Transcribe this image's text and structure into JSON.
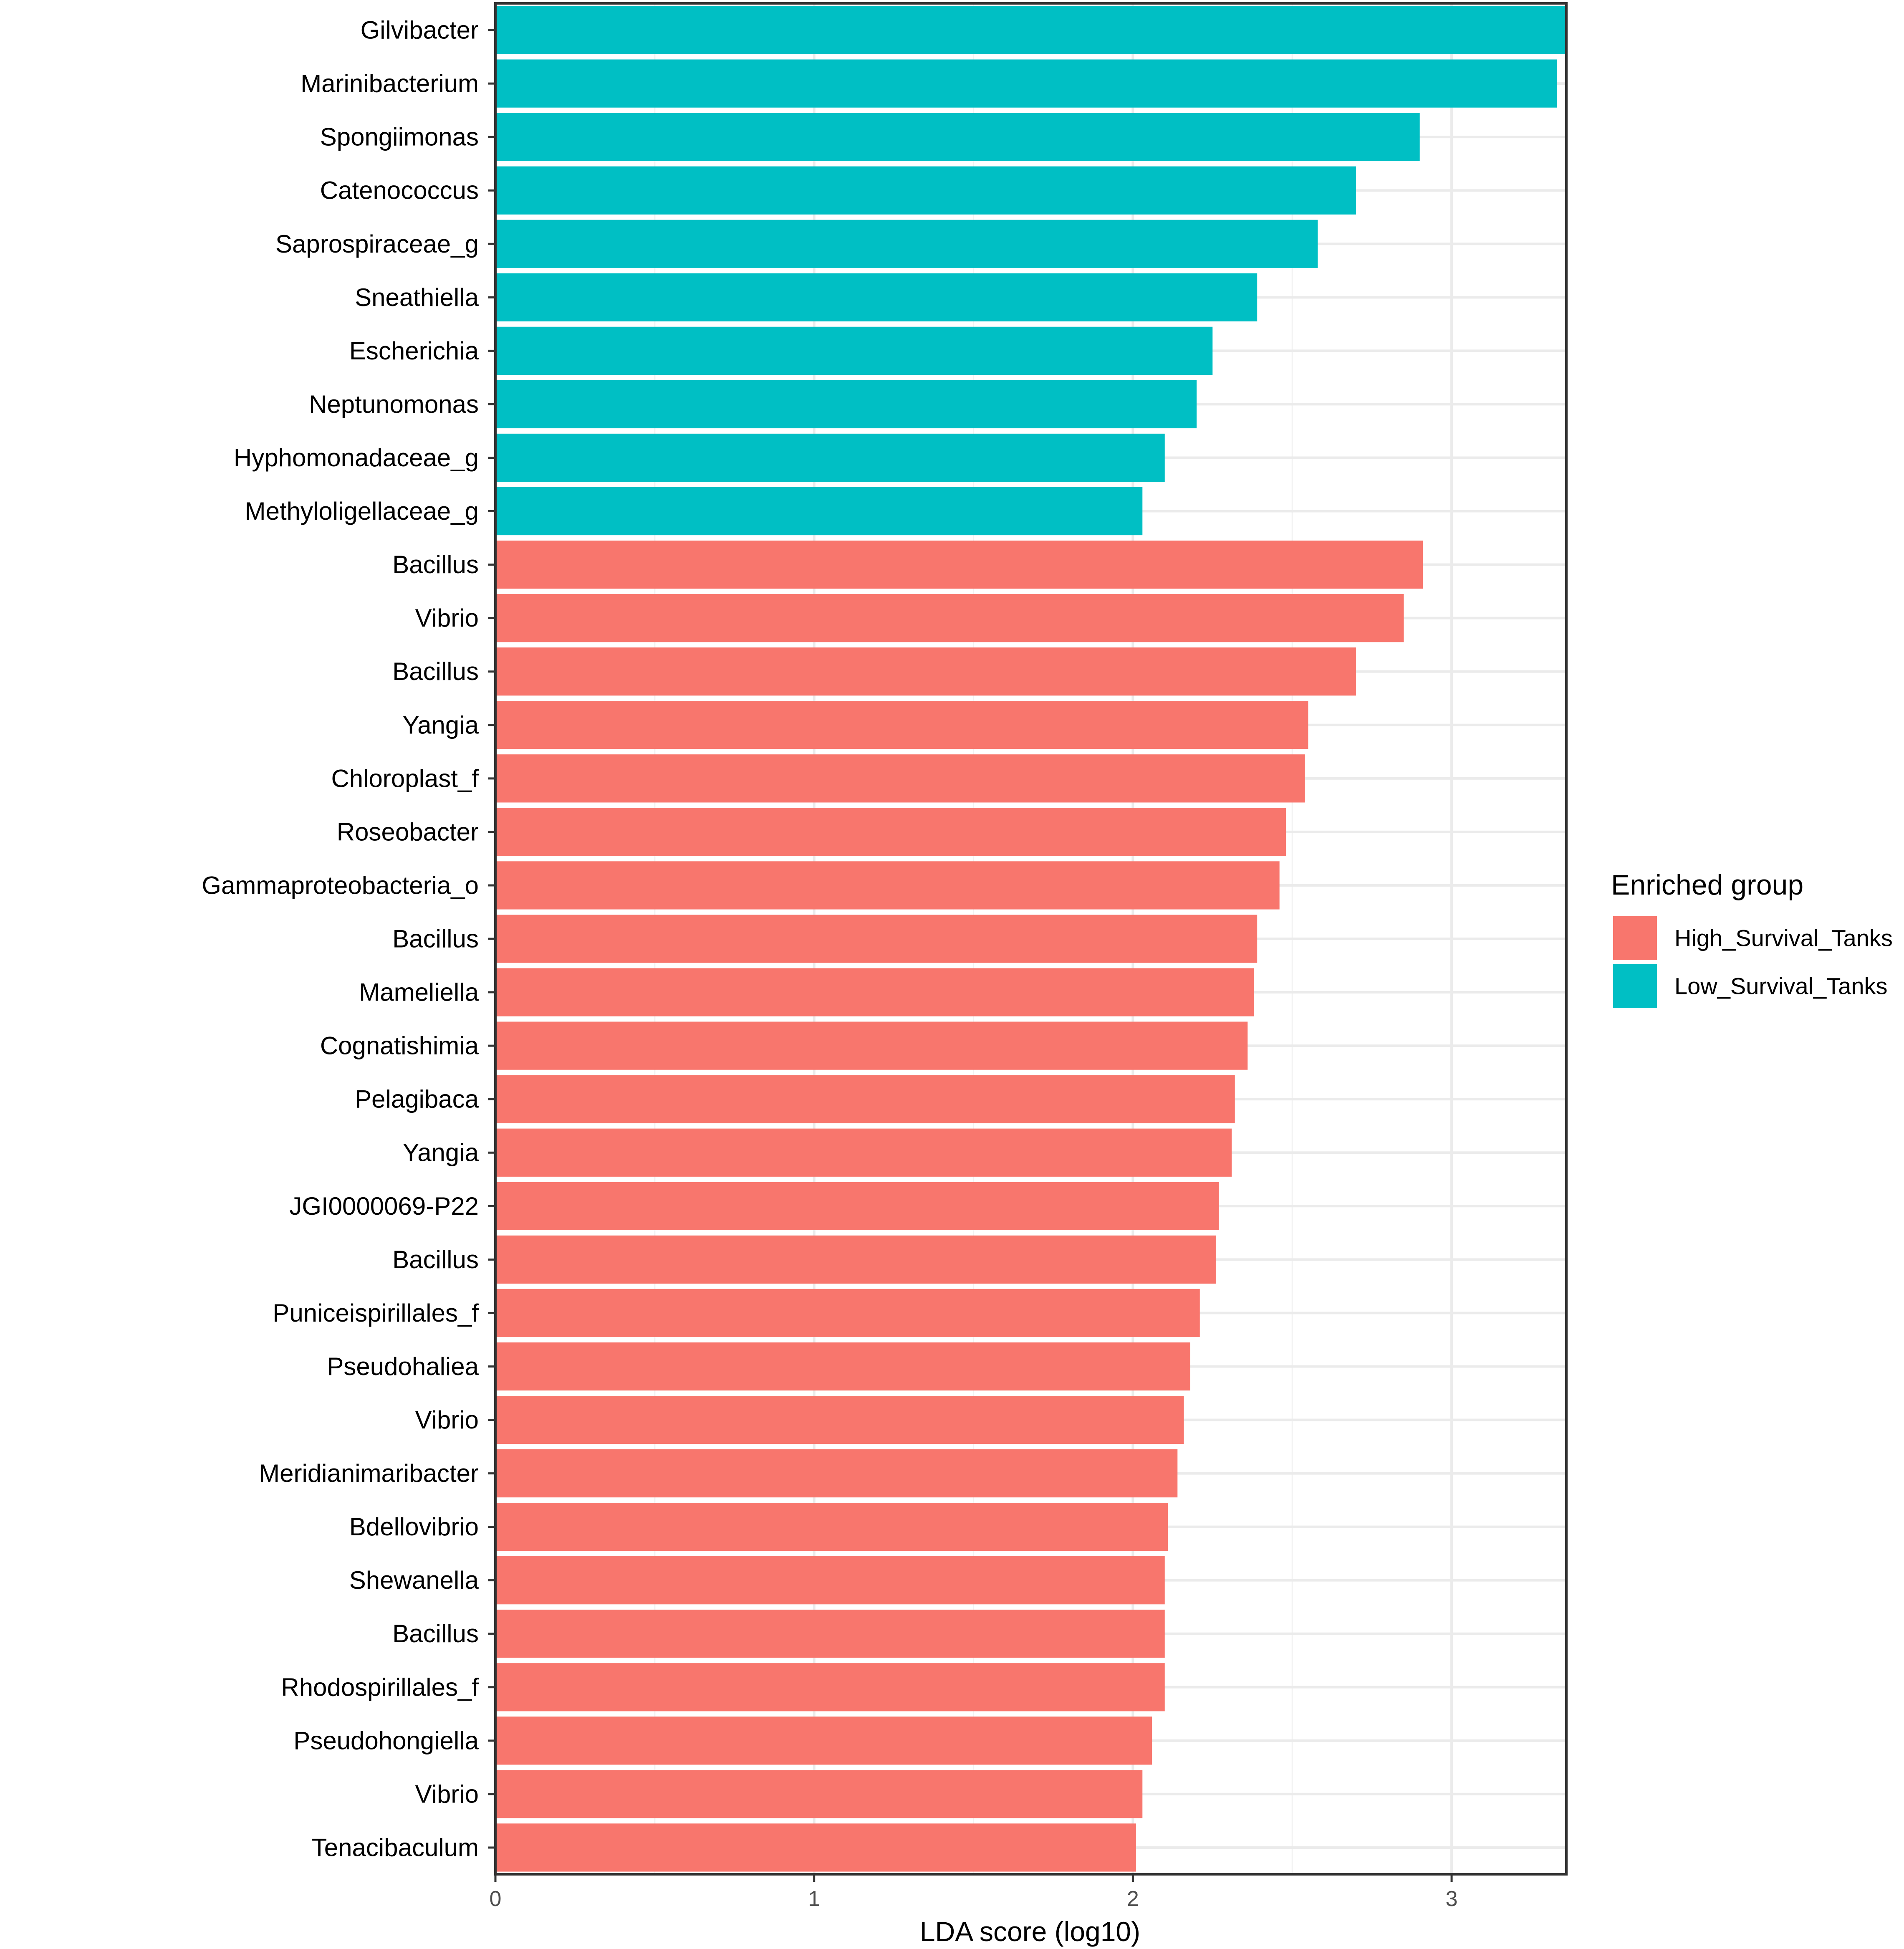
{
  "chart_data": {
    "type": "bar",
    "orientation": "horizontal",
    "title": "",
    "xlabel": "LDA score (log10)",
    "ylabel": "",
    "xlim": [
      0,
      3.36
    ],
    "xticks": [
      0,
      1,
      2,
      3
    ],
    "grid": true,
    "legend": {
      "title": "Enriched group",
      "position": "right",
      "entries": [
        {
          "name": "High_Survival_Tanks",
          "color": "#F8766D"
        },
        {
          "name": "Low_Survival_Tanks",
          "color": "#00BFC4"
        }
      ]
    },
    "bars": [
      {
        "label": "Gilvibacter",
        "value": 3.36,
        "group": "Low_Survival_Tanks"
      },
      {
        "label": "Marinibacterium",
        "value": 3.33,
        "group": "Low_Survival_Tanks"
      },
      {
        "label": "Spongiimonas",
        "value": 2.9,
        "group": "Low_Survival_Tanks"
      },
      {
        "label": "Catenococcus",
        "value": 2.7,
        "group": "Low_Survival_Tanks"
      },
      {
        "label": "Saprospiraceae_g",
        "value": 2.58,
        "group": "Low_Survival_Tanks"
      },
      {
        "label": "Sneathiella",
        "value": 2.39,
        "group": "Low_Survival_Tanks"
      },
      {
        "label": "Escherichia",
        "value": 2.25,
        "group": "Low_Survival_Tanks"
      },
      {
        "label": "Neptunomonas",
        "value": 2.2,
        "group": "Low_Survival_Tanks"
      },
      {
        "label": "Hyphomonadaceae_g",
        "value": 2.1,
        "group": "Low_Survival_Tanks"
      },
      {
        "label": "Methyloligellaceae_g",
        "value": 2.03,
        "group": "Low_Survival_Tanks"
      },
      {
        "label": "Bacillus",
        "value": 2.91,
        "group": "High_Survival_Tanks"
      },
      {
        "label": "Vibrio",
        "value": 2.85,
        "group": "High_Survival_Tanks"
      },
      {
        "label": "Bacillus",
        "value": 2.7,
        "group": "High_Survival_Tanks"
      },
      {
        "label": "Yangia",
        "value": 2.55,
        "group": "High_Survival_Tanks"
      },
      {
        "label": "Chloroplast_f",
        "value": 2.54,
        "group": "High_Survival_Tanks"
      },
      {
        "label": "Roseobacter",
        "value": 2.48,
        "group": "High_Survival_Tanks"
      },
      {
        "label": "Gammaproteobacteria_o",
        "value": 2.46,
        "group": "High_Survival_Tanks"
      },
      {
        "label": "Bacillus",
        "value": 2.39,
        "group": "High_Survival_Tanks"
      },
      {
        "label": "Mameliella",
        "value": 2.38,
        "group": "High_Survival_Tanks"
      },
      {
        "label": "Cognatishimia",
        "value": 2.36,
        "group": "High_Survival_Tanks"
      },
      {
        "label": "Pelagibaca",
        "value": 2.32,
        "group": "High_Survival_Tanks"
      },
      {
        "label": "Yangia",
        "value": 2.31,
        "group": "High_Survival_Tanks"
      },
      {
        "label": "JGI0000069-P22",
        "value": 2.27,
        "group": "High_Survival_Tanks"
      },
      {
        "label": "Bacillus",
        "value": 2.26,
        "group": "High_Survival_Tanks"
      },
      {
        "label": "Puniceispirillales_f",
        "value": 2.21,
        "group": "High_Survival_Tanks"
      },
      {
        "label": "Pseudohaliea",
        "value": 2.18,
        "group": "High_Survival_Tanks"
      },
      {
        "label": "Vibrio",
        "value": 2.16,
        "group": "High_Survival_Tanks"
      },
      {
        "label": "Meridianimaribacter",
        "value": 2.14,
        "group": "High_Survival_Tanks"
      },
      {
        "label": "Bdellovibrio",
        "value": 2.11,
        "group": "High_Survival_Tanks"
      },
      {
        "label": "Shewanella",
        "value": 2.1,
        "group": "High_Survival_Tanks"
      },
      {
        "label": "Bacillus",
        "value": 2.1,
        "group": "High_Survival_Tanks"
      },
      {
        "label": "Rhodospirillales_f",
        "value": 2.1,
        "group": "High_Survival_Tanks"
      },
      {
        "label": "Pseudohongiella",
        "value": 2.06,
        "group": "High_Survival_Tanks"
      },
      {
        "label": "Vibrio",
        "value": 2.03,
        "group": "High_Survival_Tanks"
      },
      {
        "label": "Tenacibaculum",
        "value": 2.01,
        "group": "High_Survival_Tanks"
      }
    ]
  }
}
